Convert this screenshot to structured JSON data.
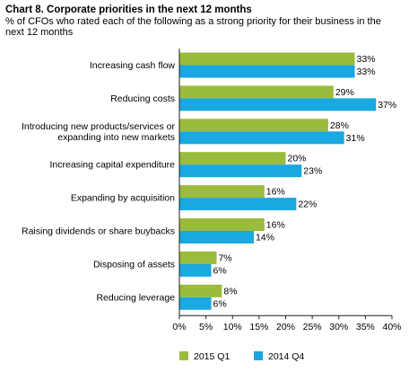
{
  "chart_data": {
    "type": "bar",
    "orientation": "horizontal",
    "title": "Chart 8. Corporate priorities in the next 12 months",
    "subtitle": "% of CFOs who rated each of the following as a strong priority for their business in the next 12 months",
    "categories": [
      [
        "Increasing cash flow"
      ],
      [
        "Reducing costs"
      ],
      [
        "Introducing new products/services or",
        "expanding into new markets"
      ],
      [
        "Increasing capital expenditure"
      ],
      [
        "Expanding by acquisition"
      ],
      [
        "Raising dividends or share buybacks"
      ],
      [
        "Disposing of assets"
      ],
      [
        "Reducing leverage"
      ]
    ],
    "series": [
      {
        "name": "2015 Q1",
        "color": "#9bbb3c",
        "values": [
          33,
          29,
          28,
          20,
          16,
          16,
          7,
          8
        ]
      },
      {
        "name": "2014 Q4",
        "color": "#19a8df",
        "values": [
          33,
          37,
          31,
          23,
          22,
          14,
          6,
          6
        ]
      }
    ],
    "xlim": [
      0,
      40
    ],
    "xticks": [
      0,
      5,
      10,
      15,
      20,
      25,
      30,
      35,
      40
    ],
    "value_suffix": "%",
    "axis_color": "#231f20",
    "grid": false,
    "legend_position": "bottom"
  }
}
